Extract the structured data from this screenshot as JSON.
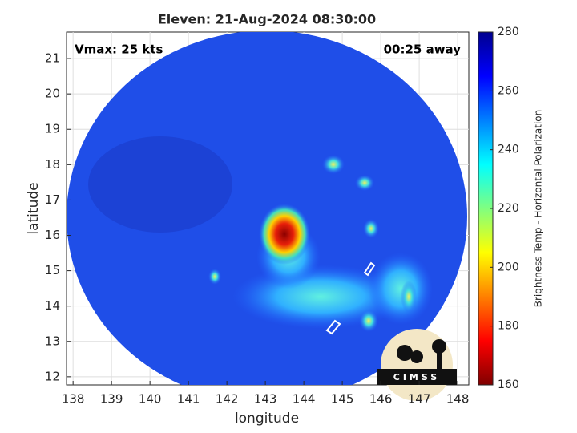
{
  "chart_data": {
    "type": "image",
    "title": "Eleven: 21-Aug-2024 08:30:00",
    "annotations": [
      "Vmax: 25 kts",
      "00:25 away"
    ],
    "xlabel": "longitude",
    "ylabel": "latitude",
    "xlim": [
      137.83,
      148.29
    ],
    "ylim": [
      11.77,
      21.75
    ],
    "xticks": [
      138,
      139,
      140,
      141,
      142,
      143,
      144,
      145,
      146,
      147,
      148
    ],
    "yticks": [
      12,
      13,
      14,
      15,
      16,
      17,
      18,
      19,
      20,
      21
    ],
    "grid": true,
    "colorbar": {
      "label": "Brightness Temp - Horizontal Polarization",
      "clim": [
        160,
        280
      ],
      "ticks": [
        160,
        180,
        200,
        220,
        240,
        260,
        280
      ],
      "colormap": "jet"
    },
    "logo_text": "CIMSS"
  }
}
